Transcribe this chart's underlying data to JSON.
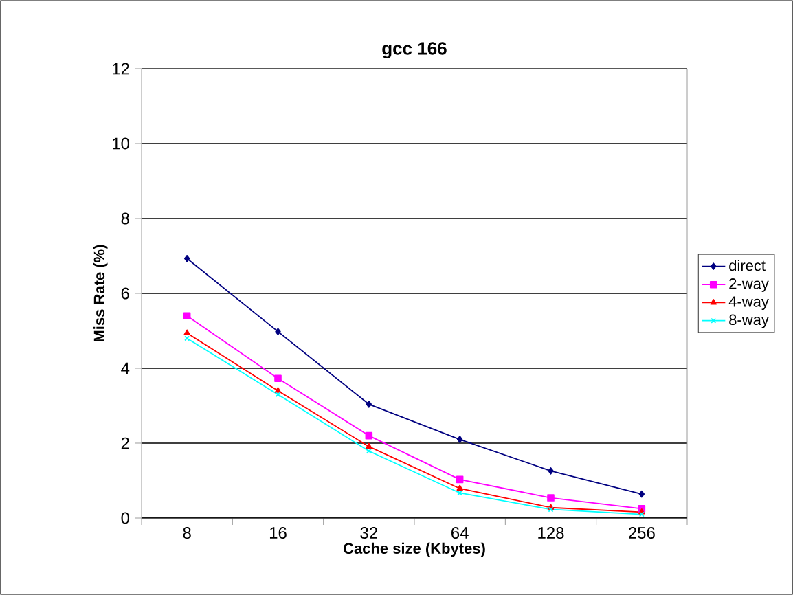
{
  "chart_data": {
    "type": "line",
    "title": "gcc 166",
    "xlabel": "Cache size (Kbytes)",
    "ylabel": "Miss Rate (%)",
    "categories": [
      "8",
      "16",
      "32",
      "64",
      "128",
      "256"
    ],
    "ylim": [
      0,
      12
    ],
    "yticks": [
      0,
      2,
      4,
      6,
      8,
      10,
      12
    ],
    "grid": "y",
    "legend": "right",
    "series": [
      {
        "name": "direct",
        "color": "#000080",
        "marker": "diamond",
        "values": [
          6.93,
          4.98,
          3.04,
          2.1,
          1.26,
          0.64
        ]
      },
      {
        "name": "2-way",
        "color": "#ff00ff",
        "marker": "square",
        "values": [
          5.4,
          3.73,
          2.2,
          1.03,
          0.54,
          0.25
        ]
      },
      {
        "name": "4-way",
        "color": "#ff0000",
        "marker": "triangle",
        "values": [
          4.94,
          3.4,
          1.91,
          0.79,
          0.28,
          0.16
        ]
      },
      {
        "name": "8-way",
        "color": "#00ffff",
        "marker": "cross",
        "values": [
          4.8,
          3.3,
          1.79,
          0.67,
          0.23,
          0.1
        ]
      }
    ]
  }
}
